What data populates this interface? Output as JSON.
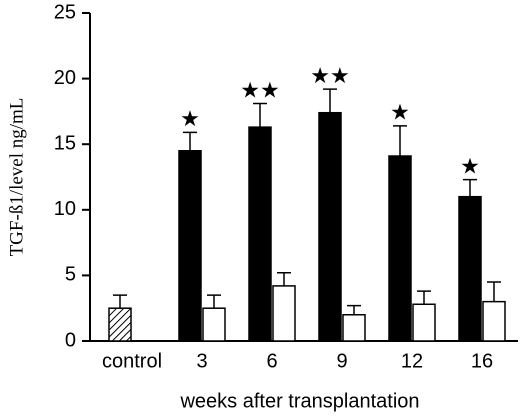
{
  "chart_data": {
    "type": "bar",
    "xlabel": "weeks after transplantation",
    "ylabel": "TGF-ß1/level ng/mL",
    "categories": [
      "control",
      "3",
      "6",
      "9",
      "12",
      "16"
    ],
    "series": [
      {
        "color": "#ffffff",
        "pattern": "hatch",
        "values": [
          2.5,
          null,
          null,
          null,
          null,
          null
        ],
        "errors": [
          1.0,
          null,
          null,
          null,
          null,
          null
        ]
      },
      {
        "color": "#000000",
        "values": [
          null,
          14.5,
          16.3,
          17.4,
          14.1,
          11.0
        ],
        "errors": [
          null,
          1.4,
          1.8,
          1.8,
          2.3,
          1.3
        ]
      },
      {
        "color": "#ffffff",
        "values": [
          null,
          2.5,
          4.2,
          2.0,
          2.8,
          3.0
        ],
        "errors": [
          null,
          1.0,
          1.0,
          0.7,
          1.0,
          1.5
        ]
      }
    ],
    "markers": [
      null,
      "★",
      "★★",
      "★★",
      "★",
      "★"
    ],
    "ylim": [
      0,
      25
    ],
    "yticks": [
      0,
      5,
      10,
      15,
      20,
      25
    ],
    "grid": false
  }
}
